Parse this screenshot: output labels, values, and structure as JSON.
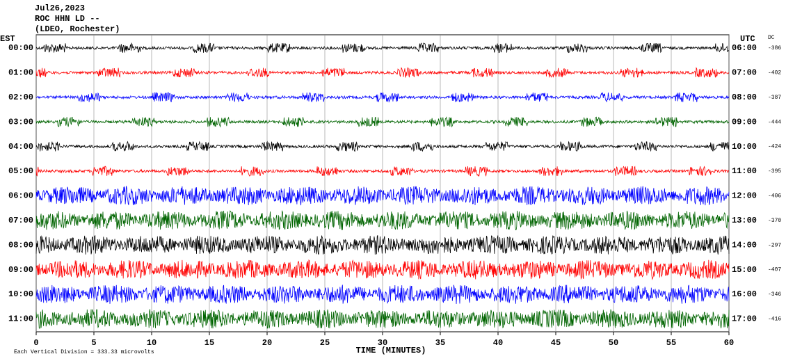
{
  "header": {
    "date": "Jul26,2023",
    "station": "ROC HHN LD --",
    "location": "(LDEO, Rochester)"
  },
  "chart_data": {
    "type": "helicorder",
    "left_axis_label": "EST",
    "right_axis_label": "UTC",
    "dc_label": "DC",
    "x_label": "TIME (MINUTES)",
    "scale_note": "Each Vertical Division =  333.33 microvolts",
    "xlim": [
      0,
      60
    ],
    "xticks": [
      0,
      5,
      10,
      15,
      20,
      25,
      30,
      35,
      40,
      45,
      50,
      55,
      60
    ],
    "grid": true,
    "rows": [
      {
        "est": "00:00",
        "utc": "06:00",
        "dc": -386,
        "color": "#000000"
      },
      {
        "est": "01:00",
        "utc": "07:00",
        "dc": -402,
        "color": "#ff0000"
      },
      {
        "est": "02:00",
        "utc": "08:00",
        "dc": -387,
        "color": "#0000ff"
      },
      {
        "est": "03:00",
        "utc": "09:00",
        "dc": -444,
        "color": "#006400"
      },
      {
        "est": "04:00",
        "utc": "10:00",
        "dc": -424,
        "color": "#000000"
      },
      {
        "est": "05:00",
        "utc": "11:00",
        "dc": -395,
        "color": "#ff0000"
      },
      {
        "est": "06:00",
        "utc": "12:00",
        "dc": -406,
        "color": "#0000ff"
      },
      {
        "est": "07:00",
        "utc": "13:00",
        "dc": -370,
        "color": "#006400"
      },
      {
        "est": "08:00",
        "utc": "14:00",
        "dc": -297,
        "color": "#000000"
      },
      {
        "est": "09:00",
        "utc": "15:00",
        "dc": -407,
        "color": "#ff0000"
      },
      {
        "est": "10:00",
        "utc": "16:00",
        "dc": -346,
        "color": "#0000ff"
      },
      {
        "est": "11:00",
        "utc": "17:00",
        "dc": -416,
        "color": "#006400"
      }
    ]
  }
}
